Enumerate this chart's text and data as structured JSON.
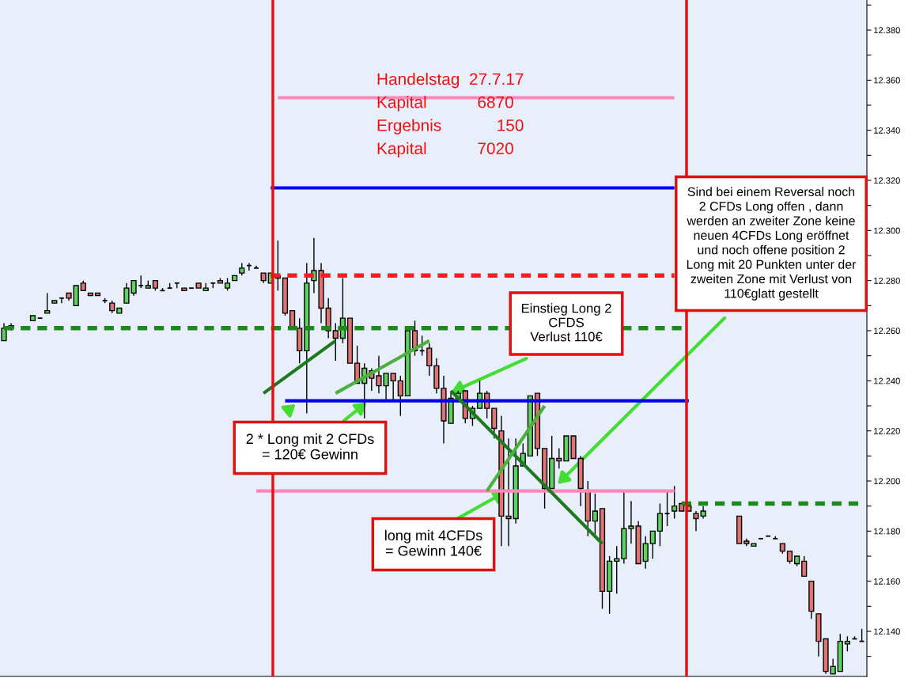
{
  "chart_data": {
    "type": "candlestick",
    "categories": [
      null,
      null,
      null,
      null,
      null,
      null,
      null,
      null,
      null,
      null,
      null,
      null,
      null,
      null,
      null,
      null,
      null,
      null,
      null,
      null,
      null,
      null,
      null,
      null,
      null,
      null,
      null,
      null,
      null,
      null,
      null,
      null,
      null,
      null,
      null,
      null,
      null,
      null,
      null,
      null,
      null,
      null,
      null,
      null,
      null,
      null,
      null,
      null,
      null,
      null,
      null,
      null,
      null,
      null,
      null,
      null,
      null,
      null,
      null,
      null,
      null,
      null,
      null,
      null,
      null,
      null,
      null,
      null,
      null,
      null,
      null,
      null,
      null,
      null,
      null,
      null,
      null,
      null,
      null,
      null,
      null,
      null,
      null,
      null,
      null,
      null,
      null,
      null,
      null,
      null,
      null,
      null,
      null,
      null,
      null,
      null,
      null,
      null,
      null,
      null,
      null,
      null,
      null,
      null,
      null,
      null,
      null,
      null,
      null,
      null,
      null,
      null,
      null,
      null,
      null,
      null,
      null,
      null,
      null,
      null
    ],
    "ohlc": [
      [
        12.256,
        12.263,
        12.256,
        12.261
      ],
      [
        12.262,
        12.263,
        12.26,
        12.261
      ],
      null,
      null,
      [
        12.264,
        12.266,
        12.264,
        12.266
      ],
      [
        12.265,
        12.265,
        12.265,
        12.265
      ],
      [
        12.267,
        12.275,
        12.267,
        12.268
      ],
      [
        12.271,
        12.272,
        12.271,
        12.272
      ],
      [
        12.273,
        12.273,
        12.271,
        12.273
      ],
      [
        12.275,
        12.275,
        12.272,
        12.273
      ],
      [
        12.27,
        12.278,
        12.27,
        12.278
      ],
      [
        12.279,
        12.28,
        12.276,
        12.276
      ],
      [
        12.275,
        12.275,
        12.274,
        12.274
      ],
      [
        12.275,
        12.275,
        12.274,
        12.274
      ],
      [
        12.272,
        12.273,
        12.271,
        12.272
      ],
      [
        12.271,
        12.272,
        12.267,
        12.268
      ],
      [
        12.267,
        12.269,
        12.267,
        12.269
      ],
      [
        12.271,
        12.279,
        12.271,
        12.277
      ],
      [
        12.275,
        12.28,
        12.274,
        12.28
      ],
      [
        12.278,
        12.282,
        12.277,
        12.278
      ],
      [
        12.277,
        12.28,
        12.277,
        12.278
      ],
      [
        12.28,
        12.28,
        12.276,
        12.277
      ],
      [
        12.276,
        12.277,
        12.276,
        12.276
      ],
      [
        12.277,
        12.279,
        12.277,
        12.277
      ],
      [
        12.279,
        12.279,
        12.277,
        12.279
      ],
      [
        12.277,
        12.277,
        12.276,
        12.276
      ],
      [
        12.277,
        12.277,
        12.277,
        12.277
      ],
      [
        12.279,
        12.279,
        12.277,
        12.277
      ],
      [
        12.276,
        12.279,
        12.276,
        12.277
      ],
      [
        12.279,
        12.279,
        12.277,
        12.279
      ],
      [
        12.28,
        12.281,
        12.279,
        12.279
      ],
      [
        12.277,
        12.281,
        12.276,
        12.279
      ],
      [
        12.28,
        12.282,
        12.28,
        12.282
      ],
      [
        12.283,
        12.287,
        12.282,
        12.285
      ],
      [
        12.286,
        12.287,
        12.284,
        12.286
      ],
      [
        12.285,
        12.286,
        12.285,
        12.285
      ],
      [
        12.283,
        12.283,
        12.279,
        12.28
      ],
      [
        12.279,
        12.283,
        12.279,
        12.283
      ],
      [
        12.282,
        12.296,
        12.276,
        12.281
      ],
      [
        12.281,
        12.281,
        12.266,
        12.267
      ],
      [
        12.268,
        12.268,
        12.261,
        12.261
      ],
      [
        12.261,
        12.265,
        12.247,
        12.252
      ],
      [
        12.252,
        12.287,
        12.227,
        12.279
      ],
      [
        12.28,
        12.297,
        12.275,
        12.284
      ],
      [
        12.284,
        12.287,
        12.263,
        12.269
      ],
      [
        12.269,
        12.273,
        12.257,
        12.26
      ],
      [
        12.26,
        12.263,
        12.248,
        12.257
      ],
      [
        12.257,
        12.281,
        12.255,
        12.265
      ],
      [
        12.265,
        12.265,
        12.247,
        12.247
      ],
      [
        12.247,
        12.254,
        12.239,
        12.239
      ],
      [
        12.239,
        12.247,
        12.225,
        12.245
      ],
      [
        12.244,
        12.245,
        12.236,
        12.241
      ],
      [
        12.242,
        12.25,
        12.235,
        12.238
      ],
      [
        12.238,
        12.243,
        12.232,
        12.243
      ],
      [
        12.243,
        12.243,
        12.232,
        12.24
      ],
      [
        12.24,
        12.242,
        12.226,
        12.234
      ],
      [
        12.234,
        12.26,
        12.234,
        12.26
      ],
      [
        12.26,
        12.264,
        12.25,
        12.252
      ],
      [
        12.252,
        12.258,
        12.25,
        12.252
      ],
      [
        12.253,
        12.255,
        12.242,
        12.246
      ],
      [
        12.246,
        12.249,
        12.235,
        12.237
      ],
      [
        12.237,
        12.242,
        12.215,
        12.224
      ],
      [
        12.223,
        12.236,
        12.223,
        12.233
      ],
      [
        12.233,
        12.236,
        12.233,
        12.235
      ],
      [
        12.236,
        12.236,
        12.223,
        12.225
      ],
      [
        12.225,
        12.23,
        12.222,
        12.229
      ],
      [
        12.229,
        12.24,
        12.229,
        12.235
      ],
      [
        12.235,
        12.236,
        12.225,
        12.229
      ],
      [
        12.229,
        12.229,
        12.217,
        12.221
      ],
      [
        12.22,
        12.226,
        12.174,
        12.186
      ],
      [
        12.186,
        12.217,
        12.174,
        12.185
      ],
      [
        12.185,
        12.217,
        12.183,
        12.206
      ],
      [
        12.206,
        12.215,
        12.206,
        12.211
      ],
      [
        12.21,
        12.234,
        12.21,
        12.234
      ],
      [
        12.235,
        12.235,
        12.21,
        12.213
      ],
      [
        12.213,
        12.213,
        12.189,
        12.197
      ],
      [
        12.197,
        12.218,
        12.197,
        12.209
      ],
      [
        12.209,
        12.213,
        12.205,
        12.208
      ],
      [
        12.208,
        12.218,
        12.208,
        12.218
      ],
      [
        12.218,
        12.218,
        12.209,
        12.209
      ],
      [
        12.209,
        12.21,
        12.19,
        12.197
      ],
      [
        12.196,
        12.2,
        12.178,
        12.184
      ],
      [
        12.184,
        12.195,
        12.178,
        12.188
      ],
      [
        12.189,
        12.189,
        12.149,
        12.156
      ],
      [
        12.156,
        12.17,
        12.147,
        12.168
      ],
      [
        12.168,
        12.174,
        12.155,
        12.169
      ],
      [
        12.169,
        12.196,
        12.167,
        12.181
      ],
      [
        12.181,
        12.192,
        12.175,
        12.182
      ],
      [
        12.182,
        12.184,
        12.167,
        12.167
      ],
      [
        12.168,
        12.178,
        12.165,
        12.175
      ],
      [
        12.175,
        12.18,
        12.169,
        12.18
      ],
      [
        12.18,
        12.191,
        12.174,
        12.187
      ],
      [
        12.187,
        12.196,
        12.182,
        12.187
      ],
      [
        12.188,
        12.198,
        12.185,
        12.19
      ],
      [
        12.191,
        12.191,
        12.188,
        12.188
      ],
      [
        12.19,
        12.19,
        12.188,
        12.188
      ],
      [
        12.187,
        12.188,
        12.18,
        12.185
      ],
      [
        12.186,
        12.19,
        12.185,
        12.188
      ],
      null,
      null,
      null,
      null,
      [
        12.186,
        12.186,
        12.175,
        12.175
      ],
      [
        12.176,
        12.177,
        12.174,
        12.175
      ],
      [
        12.174,
        12.175,
        12.174,
        12.175
      ],
      [
        12.177,
        12.177,
        12.177,
        12.177
      ],
      [
        12.178,
        12.178,
        12.178,
        12.178
      ],
      [
        12.177,
        12.178,
        12.177,
        12.177
      ],
      [
        12.175,
        12.175,
        12.171,
        12.172
      ],
      [
        12.172,
        12.172,
        12.167,
        12.168
      ],
      [
        12.167,
        12.17,
        12.166,
        12.17
      ],
      [
        12.168,
        12.17,
        12.162,
        12.162
      ],
      [
        12.16,
        12.16,
        12.145,
        12.148
      ],
      [
        12.147,
        12.147,
        12.13,
        12.136
      ],
      [
        12.137,
        12.137,
        12.123,
        12.124
      ],
      [
        12.123,
        12.129,
        12.123,
        12.126
      ],
      [
        12.124,
        12.139,
        12.124,
        12.136
      ],
      [
        12.135,
        12.138,
        12.132,
        12.136
      ],
      [
        12.137,
        12.138,
        12.137,
        12.137
      ],
      [
        12.136,
        12.141,
        12.136,
        12.136
      ]
    ],
    "colors": [
      "#5fd35f",
      "#e07373",
      null,
      null,
      "#5fd35f",
      "#000000",
      "#5fd35f",
      "#5fd35f",
      "#000000",
      "#e07373",
      "#5fd35f",
      "#e07373",
      "#e07373",
      "#e07373",
      "#000000",
      "#e07373",
      "#5fd35f",
      "#5fd35f",
      "#5fd35f",
      "#000000",
      "#5fd35f",
      "#e07373",
      "#000000",
      "#000000",
      "#000000",
      "#e07373",
      "#000000",
      "#e07373",
      "#5fd35f",
      "#000000",
      "#e07373",
      "#5fd35f",
      "#5fd35f",
      "#5fd35f",
      "#000000",
      "#000000",
      "#e07373",
      "#5fd35f",
      "#e07373",
      "#e07373",
      "#e07373",
      "#e07373",
      "#5fd35f",
      "#5fd35f",
      "#e07373",
      "#e07373",
      "#e07373",
      "#5fd35f",
      "#e07373",
      "#e07373",
      "#5fd35f",
      "#e07373",
      "#e07373",
      "#5fd35f",
      "#e07373",
      "#e07373",
      "#5fd35f",
      "#e07373",
      "#000000",
      "#e07373",
      "#e07373",
      "#e07373",
      "#5fd35f",
      "#5fd35f",
      "#e07373",
      "#5fd35f",
      "#5fd35f",
      "#e07373",
      "#e07373",
      "#e07373",
      "#e07373",
      "#5fd35f",
      "#5fd35f",
      "#5fd35f",
      "#e07373",
      "#e07373",
      "#5fd35f",
      "#e07373",
      "#5fd35f",
      "#e07373",
      "#e07373",
      "#e07373",
      "#5fd35f",
      "#e07373",
      "#5fd35f",
      "#5fd35f",
      "#5fd35f",
      "#5fd35f",
      "#e07373",
      "#5fd35f",
      "#5fd35f",
      "#5fd35f",
      "#000000",
      "#5fd35f",
      "#e07373",
      "#e07373",
      "#e07373",
      "#5fd35f",
      null,
      null,
      null,
      null,
      "#e07373",
      "#e07373",
      "#5fd35f",
      "#000000",
      "#000000",
      "#000000",
      "#e07373",
      "#e07373",
      "#5fd35f",
      "#e07373",
      "#e07373",
      "#e07373",
      "#e07373",
      "#5fd35f",
      "#5fd35f",
      "#5fd35f",
      "#000000",
      "#000000"
    ],
    "series": [
      {
        "type": "line",
        "color": "#ff88bb",
        "line_style": "solid",
        "values": [
          null,
          null,
          null,
          null,
          null,
          null,
          null,
          null,
          null,
          null,
          null,
          null,
          null,
          null,
          null,
          null,
          null,
          null,
          null,
          null,
          null,
          null,
          null,
          null,
          null,
          null,
          null,
          null,
          null,
          null,
          null,
          null,
          null,
          null,
          null,
          null,
          null,
          null,
          12.353,
          null,
          null,
          null,
          null,
          null,
          null,
          null,
          null,
          null,
          null,
          null,
          null,
          null,
          null,
          null,
          null,
          null,
          null,
          null,
          null,
          null,
          null,
          null,
          null,
          null,
          null,
          null,
          null,
          null,
          null,
          null,
          null,
          null,
          null,
          null,
          null,
          null,
          null,
          null,
          null,
          null,
          null,
          null,
          null,
          null,
          null,
          null,
          null,
          null,
          null,
          null,
          null,
          null,
          null,
          12.353,
          null,
          null,
          null,
          null,
          null,
          null,
          null,
          null,
          null,
          null,
          null,
          null,
          null,
          null,
          null,
          null,
          null,
          null,
          null,
          null,
          null,
          null,
          null,
          null,
          null,
          null
        ]
      },
      {
        "type": "line",
        "color": "#0000ee",
        "line_style": "solid",
        "values": [
          null,
          null,
          null,
          null,
          null,
          null,
          null,
          null,
          null,
          null,
          null,
          null,
          null,
          null,
          null,
          null,
          null,
          null,
          null,
          null,
          null,
          null,
          null,
          null,
          null,
          null,
          null,
          null,
          null,
          null,
          null,
          null,
          null,
          null,
          null,
          null,
          null,
          12.317,
          null,
          null,
          null,
          null,
          null,
          null,
          null,
          null,
          null,
          null,
          null,
          null,
          null,
          null,
          null,
          null,
          null,
          null,
          null,
          null,
          null,
          null,
          null,
          null,
          null,
          null,
          null,
          null,
          null,
          null,
          null,
          null,
          null,
          null,
          null,
          null,
          null,
          null,
          null,
          null,
          null,
          null,
          null,
          null,
          null,
          null,
          null,
          null,
          null,
          null,
          null,
          null,
          null,
          null,
          null,
          12.317,
          null,
          null,
          null,
          null,
          null,
          null,
          null,
          null,
          null,
          null,
          null,
          null,
          null,
          null,
          null,
          null,
          null,
          null,
          null,
          null,
          null,
          null,
          null,
          null,
          null,
          null
        ]
      },
      {
        "type": "line",
        "color": "#ee2222",
        "line_style": "dashed",
        "values": [
          null,
          null,
          null,
          null,
          null,
          null,
          null,
          null,
          null,
          null,
          null,
          null,
          null,
          null,
          null,
          null,
          null,
          null,
          null,
          null,
          null,
          null,
          null,
          null,
          null,
          null,
          null,
          null,
          null,
          null,
          null,
          null,
          null,
          null,
          null,
          null,
          null,
          12.282,
          null,
          null,
          null,
          null,
          null,
          null,
          null,
          null,
          null,
          null,
          null,
          null,
          null,
          null,
          null,
          null,
          null,
          null,
          null,
          null,
          null,
          null,
          null,
          null,
          null,
          null,
          null,
          null,
          null,
          null,
          null,
          null,
          null,
          null,
          null,
          null,
          null,
          null,
          null,
          null,
          null,
          null,
          null,
          null,
          null,
          null,
          null,
          null,
          null,
          null,
          null,
          null,
          null,
          null,
          null,
          12.282,
          null,
          null,
          null,
          null,
          null,
          null,
          null,
          null,
          null,
          null,
          null,
          null,
          null,
          null,
          null,
          null,
          null,
          null,
          null,
          null,
          null,
          null,
          null,
          null,
          null,
          null
        ]
      },
      {
        "type": "line",
        "color": "#1a8a1a",
        "line_style": "dashed",
        "values": [
          12.261,
          null,
          null,
          null,
          null,
          null,
          null,
          null,
          null,
          null,
          null,
          null,
          null,
          null,
          null,
          null,
          null,
          null,
          null,
          null,
          null,
          null,
          null,
          null,
          null,
          null,
          null,
          null,
          null,
          null,
          null,
          null,
          null,
          null,
          null,
          null,
          null,
          null,
          null,
          null,
          null,
          null,
          null,
          null,
          null,
          null,
          null,
          null,
          null,
          null,
          null,
          null,
          null,
          null,
          null,
          null,
          null,
          null,
          null,
          null,
          null,
          null,
          null,
          null,
          null,
          null,
          null,
          null,
          null,
          null,
          null,
          null,
          null,
          null,
          null,
          null,
          null,
          null,
          null,
          null,
          null,
          null,
          null,
          null,
          null,
          null,
          null,
          null,
          null,
          null,
          null,
          null,
          null,
          null,
          12.261,
          null,
          null,
          null,
          null,
          null,
          null,
          null,
          null,
          null,
          null,
          null,
          null,
          null,
          null,
          null,
          null,
          null,
          null,
          null,
          null,
          null,
          null,
          null,
          null,
          null
        ]
      },
      {
        "type": "line",
        "color": "#0000ee",
        "line_style": "solid",
        "values": [
          null,
          null,
          null,
          null,
          null,
          null,
          null,
          null,
          null,
          null,
          null,
          null,
          null,
          null,
          null,
          null,
          null,
          null,
          null,
          null,
          null,
          null,
          null,
          null,
          null,
          null,
          null,
          null,
          null,
          null,
          null,
          null,
          null,
          null,
          null,
          null,
          null,
          null,
          null,
          12.232,
          null,
          null,
          null,
          null,
          null,
          null,
          null,
          null,
          null,
          null,
          null,
          null,
          null,
          null,
          null,
          null,
          null,
          null,
          null,
          null,
          null,
          null,
          null,
          null,
          null,
          null,
          null,
          null,
          null,
          null,
          null,
          null,
          null,
          null,
          null,
          null,
          null,
          null,
          null,
          null,
          null,
          null,
          null,
          null,
          null,
          null,
          null,
          null,
          null,
          null,
          null,
          null,
          null,
          null,
          null,
          12.232,
          null,
          null,
          null,
          null,
          null,
          null,
          null,
          null,
          null,
          null,
          null,
          null,
          null,
          null,
          null,
          null,
          null,
          null,
          null,
          null,
          null,
          null,
          null,
          null
        ]
      },
      {
        "type": "line",
        "color": "#ff88bb",
        "line_style": "solid",
        "values": [
          null,
          null,
          null,
          null,
          null,
          null,
          null,
          null,
          null,
          null,
          null,
          null,
          null,
          null,
          null,
          null,
          null,
          null,
          null,
          null,
          null,
          null,
          null,
          null,
          null,
          null,
          null,
          null,
          null,
          null,
          null,
          null,
          null,
          null,
          null,
          12.196,
          null,
          null,
          null,
          null,
          null,
          null,
          null,
          null,
          null,
          null,
          null,
          null,
          null,
          null,
          null,
          null,
          null,
          null,
          null,
          null,
          null,
          null,
          null,
          null,
          null,
          null,
          null,
          null,
          null,
          null,
          null,
          null,
          null,
          null,
          null,
          null,
          null,
          null,
          null,
          null,
          null,
          null,
          null,
          null,
          null,
          null,
          null,
          null,
          null,
          null,
          null,
          null,
          null,
          null,
          null,
          null,
          null,
          12.196,
          null,
          null,
          null,
          null,
          null,
          null,
          null,
          null,
          null,
          null,
          null,
          null,
          null,
          null,
          null,
          null,
          null,
          null,
          null,
          null,
          null,
          null,
          null,
          null,
          null,
          null
        ]
      },
      {
        "type": "line",
        "color": "#1a8a1a",
        "line_style": "dashed",
        "values": [
          null,
          null,
          null,
          null,
          null,
          null,
          null,
          null,
          null,
          null,
          null,
          null,
          null,
          null,
          null,
          null,
          null,
          null,
          null,
          null,
          null,
          null,
          null,
          null,
          null,
          null,
          null,
          null,
          null,
          null,
          null,
          null,
          null,
          null,
          null,
          null,
          null,
          null,
          null,
          null,
          null,
          null,
          null,
          null,
          null,
          null,
          null,
          null,
          null,
          null,
          null,
          null,
          null,
          null,
          null,
          null,
          null,
          null,
          null,
          null,
          null,
          null,
          null,
          null,
          null,
          null,
          null,
          null,
          null,
          null,
          null,
          null,
          null,
          null,
          null,
          null,
          null,
          null,
          null,
          null,
          null,
          null,
          null,
          null,
          null,
          null,
          null,
          null,
          null,
          null,
          null,
          null,
          null,
          null,
          12.191,
          null,
          null,
          null,
          null,
          null,
          null,
          null,
          null,
          null,
          null,
          null,
          null,
          null,
          null,
          null,
          null,
          null,
          null,
          null,
          null,
          null,
          null,
          null,
          null,
          12.191
        ]
      },
      {
        "type": "line",
        "color": "#1e7a1e",
        "line_style": "solid",
        "values": [
          null,
          null,
          null,
          null,
          null,
          null,
          null,
          null,
          null,
          null,
          null,
          null,
          null,
          null,
          null,
          null,
          null,
          null,
          null,
          null,
          null,
          null,
          null,
          null,
          null,
          null,
          null,
          null,
          null,
          null,
          null,
          null,
          null,
          null,
          null,
          null,
          12.235,
          null,
          null,
          null,
          null,
          null,
          null,
          null,
          null,
          null,
          12.256,
          null,
          null,
          null,
          null,
          null,
          null,
          null,
          null,
          null,
          null,
          null,
          null,
          null,
          null,
          null,
          null,
          null,
          null,
          null,
          null,
          null,
          null,
          null,
          null,
          null,
          null,
          null,
          null,
          null,
          null,
          null,
          null,
          null,
          null,
          null,
          null,
          null,
          null,
          null,
          null,
          null,
          null,
          null,
          null,
          null,
          null,
          null,
          null,
          null,
          null,
          null,
          null,
          null,
          null,
          null,
          null,
          null,
          null,
          null,
          null,
          null,
          null,
          null,
          null,
          null,
          null,
          null,
          null,
          null,
          null,
          null,
          null,
          null
        ]
      },
      {
        "type": "line",
        "color": "#4cb03c",
        "line_style": "solid",
        "values": [
          null,
          null,
          null,
          null,
          null,
          null,
          null,
          null,
          null,
          null,
          null,
          null,
          null,
          null,
          null,
          null,
          null,
          null,
          null,
          null,
          null,
          null,
          null,
          null,
          null,
          null,
          null,
          null,
          null,
          null,
          null,
          null,
          null,
          null,
          null,
          null,
          null,
          null,
          null,
          null,
          null,
          null,
          null,
          null,
          null,
          null,
          12.235,
          null,
          null,
          null,
          null,
          null,
          null,
          null,
          null,
          null,
          null,
          null,
          null,
          12.256,
          null,
          null,
          null,
          null,
          null,
          null,
          null,
          null,
          null,
          null,
          null,
          null,
          null,
          null,
          null,
          null,
          null,
          null,
          null,
          null,
          null,
          null,
          null,
          null,
          null,
          null,
          null,
          null,
          null,
          null,
          null,
          null,
          null,
          null,
          null,
          null,
          null,
          null,
          null,
          null,
          null,
          null,
          null,
          null,
          null,
          null,
          null,
          null,
          null,
          null,
          null,
          null,
          null,
          null,
          null,
          null,
          null,
          null,
          null,
          null
        ]
      },
      {
        "type": "line",
        "color": "#1e7a1e",
        "line_style": "solid",
        "values": [
          null,
          null,
          null,
          null,
          null,
          null,
          null,
          null,
          null,
          null,
          null,
          null,
          null,
          null,
          null,
          null,
          null,
          null,
          null,
          null,
          null,
          null,
          null,
          null,
          null,
          null,
          null,
          null,
          null,
          null,
          null,
          null,
          null,
          null,
          null,
          null,
          null,
          null,
          null,
          null,
          null,
          null,
          null,
          null,
          null,
          null,
          null,
          null,
          null,
          null,
          null,
          null,
          null,
          null,
          null,
          null,
          null,
          null,
          null,
          null,
          null,
          null,
          12.236,
          null,
          null,
          null,
          null,
          null,
          null,
          null,
          null,
          null,
          null,
          null,
          null,
          null,
          null,
          null,
          null,
          null,
          null,
          null,
          null,
          12.175,
          null,
          null,
          null,
          null,
          null,
          null,
          null,
          null,
          null,
          null,
          null,
          null,
          null,
          null,
          null,
          null,
          null,
          null,
          null,
          null,
          null,
          null,
          null,
          null,
          null,
          null,
          null,
          null,
          null,
          null,
          null,
          null,
          null,
          null,
          null,
          null
        ]
      },
      {
        "type": "line",
        "color": "#4cb03c",
        "line_style": "solid",
        "values": [
          null,
          null,
          null,
          null,
          null,
          null,
          null,
          null,
          null,
          null,
          null,
          null,
          null,
          null,
          null,
          null,
          null,
          null,
          null,
          null,
          null,
          null,
          null,
          null,
          null,
          null,
          null,
          null,
          null,
          null,
          null,
          null,
          null,
          null,
          null,
          null,
          null,
          null,
          null,
          null,
          null,
          null,
          null,
          null,
          null,
          null,
          null,
          null,
          null,
          null,
          null,
          null,
          null,
          null,
          null,
          null,
          null,
          null,
          null,
          null,
          null,
          null,
          null,
          null,
          null,
          null,
          null,
          12.196,
          null,
          null,
          null,
          null,
          null,
          null,
          null,
          12.23,
          null,
          null,
          null,
          null,
          null,
          null,
          null,
          null,
          null,
          null,
          null,
          null,
          null,
          null,
          null,
          null,
          null,
          null,
          null,
          null,
          null,
          null,
          null,
          null,
          null,
          null,
          null,
          null,
          null,
          null,
          null,
          null,
          null,
          null,
          null,
          null,
          null,
          null,
          null,
          null,
          null,
          null,
          null,
          null
        ]
      }
    ],
    "ylim": [
      12.122,
      12.392
    ],
    "yticks": [
      {
        "value": 12.13,
        "label": null
      },
      {
        "value": 12.14,
        "label": "12.140"
      },
      {
        "value": 12.15,
        "label": null
      },
      {
        "value": 12.16,
        "label": "12.160"
      },
      {
        "value": 12.17,
        "label": null
      },
      {
        "value": 12.18,
        "label": "12.180"
      },
      {
        "value": 12.19,
        "label": null
      },
      {
        "value": 12.2,
        "label": "12.200"
      },
      {
        "value": 12.21,
        "label": null
      },
      {
        "value": 12.22,
        "label": "12.220"
      },
      {
        "value": 12.23,
        "label": null
      },
      {
        "value": 12.24,
        "label": "12.240"
      },
      {
        "value": 12.25,
        "label": null
      },
      {
        "value": 12.26,
        "label": "12.260"
      },
      {
        "value": 12.27,
        "label": null
      },
      {
        "value": 12.28,
        "label": "12.280"
      },
      {
        "value": 12.29,
        "label": null
      },
      {
        "value": 12.3,
        "label": "12.300"
      },
      {
        "value": 12.31,
        "label": null
      },
      {
        "value": 12.32,
        "label": "12.320"
      },
      {
        "value": 12.33,
        "label": null
      },
      {
        "value": 12.34,
        "label": "12.340"
      },
      {
        "value": 12.35,
        "label": null
      },
      {
        "value": 12.36,
        "label": "12.360"
      },
      {
        "value": 12.37,
        "label": null
      },
      {
        "value": 12.38,
        "label": "12.380"
      },
      {
        "value": 12.39,
        "label": null
      }
    ],
    "tick_labels": "y",
    "grid": false,
    "annotations": [
      "Handelstag  27.7.17\nKapital           6870\nErgebnis            150\nKapital           7020",
      "Sind bei einem Reversal noch\n2 CFDs Long offen , dann\nwerden an zweiter Zone keine\nneuen 4CFDs Long eröffnet\nund noch offene position 2\nLong mit 20 Punkten unter der\nzweiten Zone mit Verlust von\n110€glatt gestellt",
      "Einstieg Long 2\nCFDS\nVerlust 110€",
      "2 * Long mit 2 CFDs\n= 120€ Gewinn",
      "long mit 4CFDs\n= Gewinn 140€"
    ]
  }
}
